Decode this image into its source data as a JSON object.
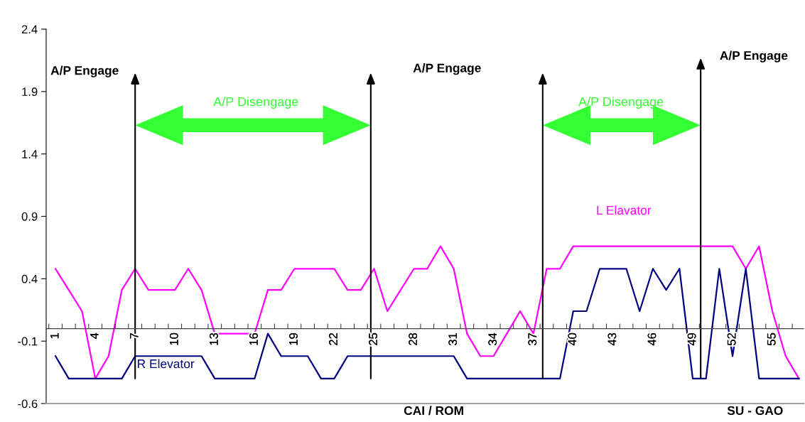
{
  "chart_data": {
    "type": "line",
    "categories": [
      "1",
      null,
      null,
      "4",
      null,
      null,
      "7",
      null,
      null,
      "10",
      null,
      null,
      "13",
      null,
      null,
      "16",
      null,
      null,
      "19",
      null,
      null,
      "22",
      null,
      null,
      "25",
      null,
      null,
      "28",
      null,
      null,
      "31",
      null,
      null,
      "34",
      null,
      null,
      "37",
      null,
      null,
      "40",
      null,
      null,
      "43",
      null,
      null,
      "46",
      null,
      null,
      "49",
      null,
      null,
      "52",
      null,
      null,
      "55",
      null,
      null
    ],
    "series": [
      {
        "name": "L Elavator",
        "color": "#ff00ff",
        "values": [
          0.48,
          0.31,
          0.14,
          -0.4,
          -0.22,
          0.31,
          0.48,
          0.31,
          0.31,
          0.31,
          0.48,
          0.31,
          -0.04,
          -0.04,
          -0.04,
          -0.04,
          0.31,
          0.31,
          0.48,
          0.48,
          0.48,
          0.48,
          0.31,
          0.31,
          0.48,
          0.14,
          0.31,
          0.48,
          0.48,
          0.66,
          0.48,
          -0.04,
          -0.22,
          -0.22,
          -0.04,
          0.14,
          -0.04,
          0.48,
          0.48,
          0.66,
          0.66,
          0.66,
          0.66,
          0.66,
          0.66,
          0.66,
          0.66,
          0.66,
          0.66,
          0.66,
          0.66,
          0.66,
          0.48,
          0.66,
          0.14,
          -0.22,
          -0.4
        ]
      },
      {
        "name": "R Elevator",
        "color": "#000080",
        "values": [
          -0.22,
          -0.4,
          -0.4,
          -0.4,
          -0.4,
          -0.4,
          -0.22,
          -0.22,
          -0.22,
          -0.22,
          -0.22,
          -0.22,
          -0.4,
          -0.4,
          -0.4,
          -0.4,
          -0.04,
          -0.22,
          -0.22,
          -0.22,
          -0.4,
          -0.4,
          -0.22,
          -0.22,
          -0.22,
          -0.22,
          -0.22,
          -0.22,
          -0.22,
          -0.22,
          -0.22,
          -0.4,
          -0.4,
          -0.4,
          -0.4,
          -0.4,
          -0.4,
          -0.4,
          -0.4,
          0.14,
          0.14,
          0.48,
          0.48,
          0.48,
          0.14,
          0.48,
          0.31,
          0.48,
          -0.4,
          -0.4,
          0.48,
          -0.22,
          0.48,
          -0.4,
          -0.4,
          -0.4,
          -0.4
        ]
      }
    ],
    "ylim": [
      -0.6,
      2.4
    ],
    "yticks": [
      -0.6,
      -0.1,
      0.4,
      0.9,
      1.4,
      1.9,
      2.4
    ],
    "grid": false,
    "legend": false,
    "marker": "none",
    "line_style": "solid",
    "annotations": [
      "A/P Engage",
      "A/P Engage",
      "A/P Engage",
      "A/P Disengage",
      "A/P Disengage",
      "CAI / ROM",
      "SU - GAO"
    ]
  }
}
